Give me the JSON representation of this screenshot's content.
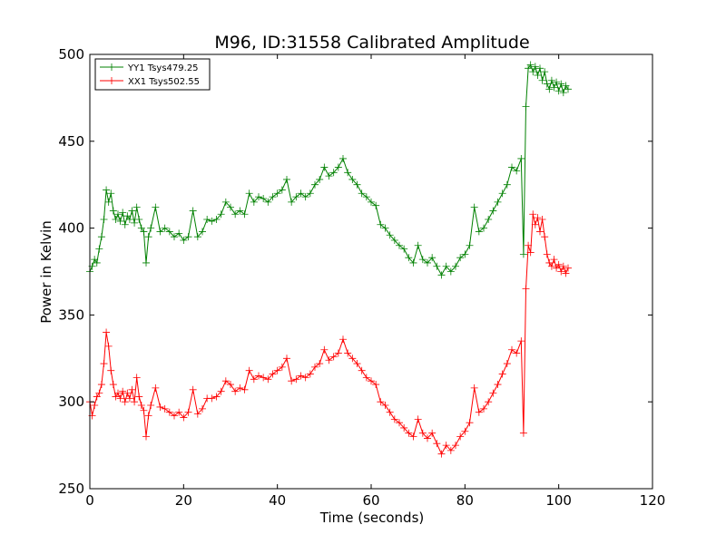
{
  "chart_data": {
    "type": "line",
    "title": "M96, ID:31558 Calibrated Amplitude",
    "xlabel": "Time (seconds)",
    "ylabel": "Power in Kelvin",
    "xlim": [
      0,
      120
    ],
    "ylim": [
      250,
      500
    ],
    "xticks": [
      0,
      20,
      40,
      60,
      80,
      100,
      120
    ],
    "yticks": [
      250,
      300,
      350,
      400,
      450,
      500
    ],
    "grid": false,
    "legend_position": "top-left",
    "marker": "+",
    "series": [
      {
        "name": "YY1 Tsys479.25",
        "color": "#008000",
        "points": [
          [
            0,
            375
          ],
          [
            0.5,
            378
          ],
          [
            1,
            382
          ],
          [
            1.5,
            380
          ],
          [
            2,
            388
          ],
          [
            2.5,
            395
          ],
          [
            3,
            405
          ],
          [
            3.5,
            422
          ],
          [
            4,
            415
          ],
          [
            4.5,
            420
          ],
          [
            5,
            410
          ],
          [
            5.5,
            405
          ],
          [
            6,
            408
          ],
          [
            6.5,
            404
          ],
          [
            7,
            409
          ],
          [
            7.5,
            402
          ],
          [
            8,
            407
          ],
          [
            8.5,
            405
          ],
          [
            9,
            410
          ],
          [
            9.5,
            403
          ],
          [
            10,
            412
          ],
          [
            10.5,
            405
          ],
          [
            11,
            400
          ],
          [
            11.5,
            398
          ],
          [
            12,
            380
          ],
          [
            12.5,
            395
          ],
          [
            13,
            400
          ],
          [
            14,
            412
          ],
          [
            15,
            398
          ],
          [
            16,
            400
          ],
          [
            17,
            398
          ],
          [
            18,
            395
          ],
          [
            19,
            397
          ],
          [
            20,
            393
          ],
          [
            21,
            395
          ],
          [
            22,
            410
          ],
          [
            23,
            395
          ],
          [
            24,
            398
          ],
          [
            25,
            405
          ],
          [
            26,
            404
          ],
          [
            27,
            405
          ],
          [
            28,
            408
          ],
          [
            29,
            415
          ],
          [
            30,
            412
          ],
          [
            31,
            408
          ],
          [
            32,
            410
          ],
          [
            33,
            408
          ],
          [
            34,
            420
          ],
          [
            35,
            415
          ],
          [
            36,
            418
          ],
          [
            37,
            417
          ],
          [
            38,
            415
          ],
          [
            39,
            418
          ],
          [
            40,
            420
          ],
          [
            41,
            422
          ],
          [
            42,
            428
          ],
          [
            43,
            415
          ],
          [
            44,
            418
          ],
          [
            45,
            420
          ],
          [
            46,
            418
          ],
          [
            47,
            420
          ],
          [
            48,
            425
          ],
          [
            49,
            428
          ],
          [
            50,
            435
          ],
          [
            51,
            430
          ],
          [
            52,
            432
          ],
          [
            53,
            435
          ],
          [
            54,
            440
          ],
          [
            55,
            432
          ],
          [
            56,
            428
          ],
          [
            57,
            425
          ],
          [
            58,
            420
          ],
          [
            59,
            418
          ],
          [
            60,
            415
          ],
          [
            61,
            413
          ],
          [
            62,
            402
          ],
          [
            63,
            400
          ],
          [
            64,
            396
          ],
          [
            65,
            393
          ],
          [
            66,
            390
          ],
          [
            67,
            388
          ],
          [
            68,
            383
          ],
          [
            69,
            380
          ],
          [
            70,
            390
          ],
          [
            71,
            382
          ],
          [
            72,
            380
          ],
          [
            73,
            383
          ],
          [
            74,
            378
          ],
          [
            75,
            373
          ],
          [
            76,
            378
          ],
          [
            77,
            375
          ],
          [
            78,
            378
          ],
          [
            79,
            383
          ],
          [
            80,
            385
          ],
          [
            81,
            390
          ],
          [
            82,
            412
          ],
          [
            83,
            398
          ],
          [
            84,
            400
          ],
          [
            85,
            405
          ],
          [
            86,
            410
          ],
          [
            87,
            415
          ],
          [
            88,
            420
          ],
          [
            89,
            425
          ],
          [
            90,
            435
          ],
          [
            91,
            433
          ],
          [
            92,
            440
          ],
          [
            92.5,
            385
          ],
          [
            93,
            470
          ],
          [
            93.5,
            492
          ],
          [
            94,
            494
          ],
          [
            94.5,
            490
          ],
          [
            95,
            493
          ],
          [
            95.5,
            488
          ],
          [
            96,
            492
          ],
          [
            96.5,
            485
          ],
          [
            97,
            490
          ],
          [
            97.5,
            483
          ],
          [
            98,
            480
          ],
          [
            98.5,
            485
          ],
          [
            99,
            481
          ],
          [
            99.5,
            484
          ],
          [
            100,
            479
          ],
          [
            100.5,
            483
          ],
          [
            101,
            478
          ],
          [
            101.5,
            482
          ],
          [
            102,
            480
          ]
        ]
      },
      {
        "name": "XX1 Tsys502.55",
        "color": "#ff0000",
        "points": [
          [
            0,
            300
          ],
          [
            0.5,
            292
          ],
          [
            1,
            298
          ],
          [
            1.5,
            303
          ],
          [
            2,
            305
          ],
          [
            2.5,
            310
          ],
          [
            3,
            322
          ],
          [
            3.5,
            340
          ],
          [
            4,
            332
          ],
          [
            4.5,
            318
          ],
          [
            5,
            310
          ],
          [
            5.5,
            303
          ],
          [
            6,
            305
          ],
          [
            6.5,
            302
          ],
          [
            7,
            306
          ],
          [
            7.5,
            300
          ],
          [
            8,
            305
          ],
          [
            8.5,
            302
          ],
          [
            9,
            307
          ],
          [
            9.5,
            300
          ],
          [
            10,
            314
          ],
          [
            10.5,
            303
          ],
          [
            11,
            298
          ],
          [
            11.5,
            295
          ],
          [
            12,
            280
          ],
          [
            12.5,
            292
          ],
          [
            13,
            298
          ],
          [
            14,
            308
          ],
          [
            15,
            297
          ],
          [
            16,
            296
          ],
          [
            17,
            294
          ],
          [
            18,
            292
          ],
          [
            19,
            294
          ],
          [
            20,
            291
          ],
          [
            21,
            294
          ],
          [
            22,
            307
          ],
          [
            23,
            293
          ],
          [
            24,
            296
          ],
          [
            25,
            302
          ],
          [
            26,
            302
          ],
          [
            27,
            303
          ],
          [
            28,
            306
          ],
          [
            29,
            312
          ],
          [
            30,
            310
          ],
          [
            31,
            306
          ],
          [
            32,
            308
          ],
          [
            33,
            307
          ],
          [
            34,
            318
          ],
          [
            35,
            313
          ],
          [
            36,
            315
          ],
          [
            37,
            314
          ],
          [
            38,
            313
          ],
          [
            39,
            316
          ],
          [
            40,
            318
          ],
          [
            41,
            320
          ],
          [
            42,
            325
          ],
          [
            43,
            312
          ],
          [
            44,
            313
          ],
          [
            45,
            315
          ],
          [
            46,
            314
          ],
          [
            47,
            316
          ],
          [
            48,
            320
          ],
          [
            49,
            322
          ],
          [
            50,
            330
          ],
          [
            51,
            324
          ],
          [
            52,
            326
          ],
          [
            53,
            328
          ],
          [
            54,
            336
          ],
          [
            55,
            328
          ],
          [
            56,
            325
          ],
          [
            57,
            322
          ],
          [
            58,
            318
          ],
          [
            59,
            314
          ],
          [
            60,
            312
          ],
          [
            61,
            310
          ],
          [
            62,
            300
          ],
          [
            63,
            298
          ],
          [
            64,
            294
          ],
          [
            65,
            290
          ],
          [
            66,
            288
          ],
          [
            67,
            285
          ],
          [
            68,
            282
          ],
          [
            69,
            280
          ],
          [
            70,
            290
          ],
          [
            71,
            282
          ],
          [
            72,
            279
          ],
          [
            73,
            282
          ],
          [
            74,
            276
          ],
          [
            75,
            270
          ],
          [
            76,
            275
          ],
          [
            77,
            272
          ],
          [
            78,
            275
          ],
          [
            79,
            280
          ],
          [
            80,
            283
          ],
          [
            81,
            288
          ],
          [
            82,
            308
          ],
          [
            83,
            294
          ],
          [
            84,
            296
          ],
          [
            85,
            300
          ],
          [
            86,
            305
          ],
          [
            87,
            310
          ],
          [
            88,
            316
          ],
          [
            89,
            322
          ],
          [
            90,
            330
          ],
          [
            91,
            328
          ],
          [
            92,
            335
          ],
          [
            92.5,
            282
          ],
          [
            93,
            365
          ],
          [
            93.5,
            390
          ],
          [
            94,
            386
          ],
          [
            94.5,
            408
          ],
          [
            95,
            402
          ],
          [
            95.5,
            406
          ],
          [
            96,
            398
          ],
          [
            96.5,
            405
          ],
          [
            97,
            395
          ],
          [
            97.5,
            385
          ],
          [
            98,
            380
          ],
          [
            98.5,
            378
          ],
          [
            99,
            382
          ],
          [
            99.5,
            377
          ],
          [
            100,
            379
          ],
          [
            100.5,
            375
          ],
          [
            101,
            378
          ],
          [
            101.5,
            374
          ],
          [
            102,
            377
          ]
        ]
      }
    ]
  }
}
